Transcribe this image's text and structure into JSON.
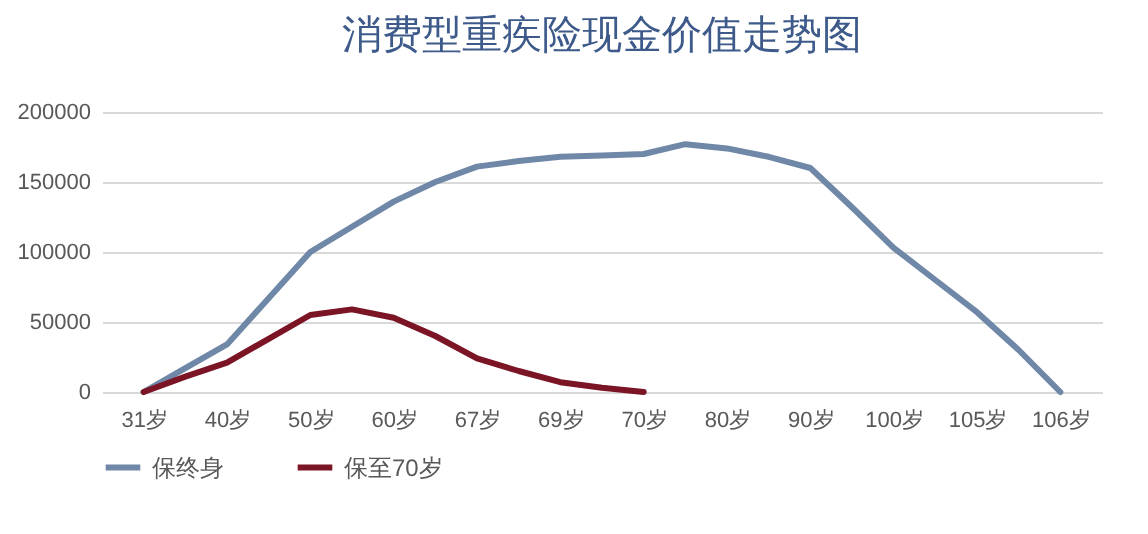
{
  "chart_data": {
    "type": "line",
    "title": "消费型重疾险现金价值走势图",
    "categories": [
      "31岁",
      null,
      "40岁",
      null,
      "50岁",
      null,
      "60岁",
      null,
      "67岁",
      null,
      "69岁",
      null,
      "70岁",
      null,
      "80岁",
      null,
      "90岁",
      null,
      "100岁",
      null,
      "105岁",
      null,
      "106岁"
    ],
    "series": [
      {
        "name": "保终身",
        "color": "#7088a8",
        "values": [
          0,
          17000,
          34000,
          67000,
          100000,
          118000,
          136000,
          150000,
          161000,
          165000,
          168000,
          169000,
          170000,
          177000,
          174000,
          168000,
          160000,
          132000,
          103000,
          80000,
          57000,
          30000,
          0
        ]
      },
      {
        "name": "保至70岁",
        "color": "#7b1526",
        "values": [
          0,
          11000,
          21000,
          38000,
          55000,
          59000,
          53000,
          40000,
          24000,
          15000,
          7000,
          3000,
          0,
          null,
          null,
          null,
          null,
          null,
          null,
          null,
          null,
          null,
          null
        ]
      }
    ],
    "ylim": [
      0,
      200000
    ],
    "yticks": [
      0,
      50000,
      100000,
      150000,
      200000
    ],
    "grid": "y",
    "legend": "bottom",
    "marker": "none",
    "line_style": "solid"
  }
}
